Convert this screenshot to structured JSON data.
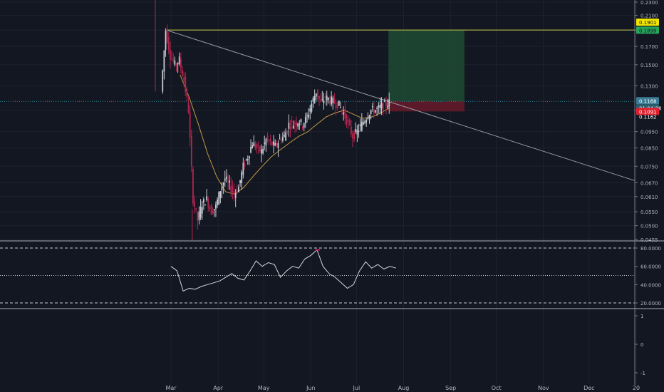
{
  "colors": {
    "background": "#131722",
    "grid": "#1e2230",
    "up": "#c9ccd2",
    "down": "#b3244d",
    "ema": "#c49a45",
    "trendline": "#9598a1",
    "resistance": "#c6c84a",
    "target_zone": "#1f4a32",
    "stop_zone": "#6a1a2a",
    "entry_line": "#2f8f9c",
    "rsi_line": "#d4d6db",
    "rsi_overbought": "#c2185b",
    "axis_text": "#b2b5be",
    "badge_yellow": "#f2e600",
    "badge_green": "#26a65b",
    "badge_blue": "#3a7d94",
    "badge_red": "#e0202f"
  },
  "chart_data": [
    {
      "type": "candlestick",
      "title": "",
      "x_ticks": [
        "Mar",
        "Apr",
        "May",
        "Jun",
        "Jul",
        "Aug",
        "Sep",
        "Oct",
        "Nov",
        "Dec",
        "20"
      ],
      "y_ticks": [
        "0.2300",
        "0.2100",
        "0.1900",
        "0.1700",
        "0.1500",
        "0.1300",
        "0.1100",
        "0.0950",
        "0.0850",
        "0.0750",
        "0.0670",
        "0.0610",
        "0.0550",
        "0.0500",
        "0.0455"
      ],
      "ylim": [
        0.0455,
        0.24
      ],
      "y_scale": "log",
      "close_series": {
        "x": [
          "2020-02-24",
          "2020-02-27",
          "2020-03-01",
          "2020-03-04",
          "2020-03-07",
          "2020-03-10",
          "2020-03-13",
          "2020-03-16",
          "2020-03-19",
          "2020-03-22",
          "2020-03-25",
          "2020-03-28",
          "2020-03-31",
          "2020-04-03",
          "2020-04-06",
          "2020-04-09",
          "2020-04-12",
          "2020-04-15",
          "2020-04-18",
          "2020-04-21",
          "2020-04-24",
          "2020-04-27",
          "2020-04-30",
          "2020-05-03",
          "2020-05-06",
          "2020-05-09",
          "2020-05-12",
          "2020-05-15",
          "2020-05-18",
          "2020-05-21",
          "2020-05-24",
          "2020-05-27",
          "2020-05-30",
          "2020-06-02",
          "2020-06-05",
          "2020-06-08",
          "2020-06-11",
          "2020-06-14",
          "2020-06-17",
          "2020-06-20",
          "2020-06-23",
          "2020-06-26",
          "2020-06-29",
          "2020-07-02",
          "2020-07-05",
          "2020-07-08",
          "2020-07-11",
          "2020-07-14",
          "2020-07-17",
          "2020-07-20",
          "2020-07-23"
        ],
        "y": [
          0.125,
          0.19,
          0.16,
          0.15,
          0.155,
          0.135,
          0.11,
          0.06,
          0.052,
          0.058,
          0.06,
          0.055,
          0.057,
          0.064,
          0.069,
          0.066,
          0.062,
          0.065,
          0.075,
          0.08,
          0.088,
          0.085,
          0.083,
          0.09,
          0.088,
          0.086,
          0.09,
          0.092,
          0.1,
          0.1,
          0.102,
          0.1,
          0.105,
          0.115,
          0.125,
          0.115,
          0.12,
          0.118,
          0.116,
          0.114,
          0.108,
          0.1,
          0.092,
          0.095,
          0.1,
          0.105,
          0.11,
          0.11,
          0.112,
          0.114,
          0.116
        ]
      },
      "ema_series": {
        "x": [
          "2020-03-07",
          "2020-03-13",
          "2020-03-19",
          "2020-03-25",
          "2020-03-31",
          "2020-04-06",
          "2020-04-12",
          "2020-04-18",
          "2020-04-24",
          "2020-04-30",
          "2020-05-06",
          "2020-05-12",
          "2020-05-18",
          "2020-05-24",
          "2020-05-30",
          "2020-06-05",
          "2020-06-11",
          "2020-06-17",
          "2020-06-23",
          "2020-06-29",
          "2020-07-05",
          "2020-07-11",
          "2020-07-17",
          "2020-07-23"
        ],
        "y": [
          0.14,
          0.12,
          0.1,
          0.082,
          0.07,
          0.063,
          0.062,
          0.065,
          0.07,
          0.075,
          0.08,
          0.084,
          0.088,
          0.092,
          0.095,
          0.1,
          0.105,
          0.108,
          0.11,
          0.107,
          0.104,
          0.105,
          0.108,
          0.112
        ]
      },
      "trendline": {
        "x": [
          "2020-02-27",
          "2020-12-31"
        ],
        "y": [
          0.19,
          0.068
        ]
      },
      "resistance_level": 0.1901,
      "position": {
        "entry": 0.1168,
        "target": 0.1899,
        "stop": 0.1091,
        "x_start": "2020-07-22",
        "x_end": "2020-09-10"
      },
      "price_labels": {
        "resistance": "0.1901",
        "target": "0.1899",
        "entry": "0.1168",
        "countdown": "01:04:28",
        "current": "0.1162",
        "stop": "0.1091"
      }
    },
    {
      "type": "line",
      "title": "",
      "y_ticks": [
        "80.0000",
        "60.0000",
        "40.0000",
        "20.0000"
      ],
      "ylim": [
        15,
        85
      ],
      "levels": [
        80,
        50,
        20
      ],
      "series": [
        {
          "x": [
            "2020-03-01",
            "2020-03-05",
            "2020-03-09",
            "2020-03-13",
            "2020-03-17",
            "2020-03-21",
            "2020-03-25",
            "2020-03-29",
            "2020-04-02",
            "2020-04-06",
            "2020-04-10",
            "2020-04-14",
            "2020-04-18",
            "2020-04-22",
            "2020-04-26",
            "2020-04-30",
            "2020-05-04",
            "2020-05-08",
            "2020-05-12",
            "2020-05-16",
            "2020-05-20",
            "2020-05-24",
            "2020-05-28",
            "2020-06-01",
            "2020-06-05",
            "2020-06-09",
            "2020-06-13",
            "2020-06-17",
            "2020-06-21",
            "2020-06-25",
            "2020-06-29",
            "2020-07-03",
            "2020-07-07",
            "2020-07-11",
            "2020-07-15",
            "2020-07-19",
            "2020-07-23",
            "2020-07-27"
          ],
          "y": [
            60,
            55,
            33,
            36,
            35,
            38,
            40,
            42,
            44,
            48,
            52,
            47,
            45,
            55,
            66,
            60,
            64,
            62,
            48,
            55,
            60,
            58,
            68,
            72,
            78,
            60,
            52,
            48,
            42,
            36,
            40,
            55,
            65,
            58,
            62,
            57,
            60,
            58
          ]
        }
      ]
    },
    {
      "type": "line",
      "title": "",
      "y_ticks": [
        "1",
        "0",
        "-1"
      ],
      "ylim": [
        -1.5,
        1.5
      ]
    }
  ]
}
